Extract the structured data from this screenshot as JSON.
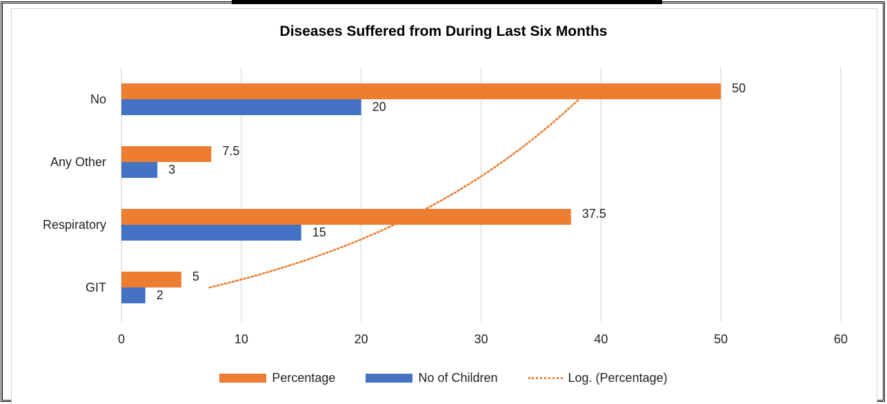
{
  "chart_data": {
    "type": "bar",
    "orientation": "horizontal",
    "title": "Diseases Suffered from During Last Six Months",
    "categories": [
      "No",
      "Any Other",
      "Respiratory",
      "GIT"
    ],
    "series": [
      {
        "name": "Percentage",
        "values": [
          50,
          7.5,
          37.5,
          5
        ],
        "labels": [
          "50",
          "7.5",
          "37.5",
          "5"
        ],
        "color": "#ED7D31"
      },
      {
        "name": "No of Children",
        "values": [
          20,
          3,
          15,
          2
        ],
        "labels": [
          "20",
          "3",
          "15",
          "2"
        ],
        "color": "#4472C4"
      }
    ],
    "trendline": {
      "name": "Log. (Percentage)",
      "type": "logarithmic",
      "style": "dotted",
      "color": "#ED7D31"
    },
    "xlim": [
      0,
      60
    ],
    "xticks": [
      "0",
      "10",
      "20",
      "30",
      "40",
      "50",
      "60"
    ],
    "grid": "vertical",
    "legend": "bottom"
  }
}
